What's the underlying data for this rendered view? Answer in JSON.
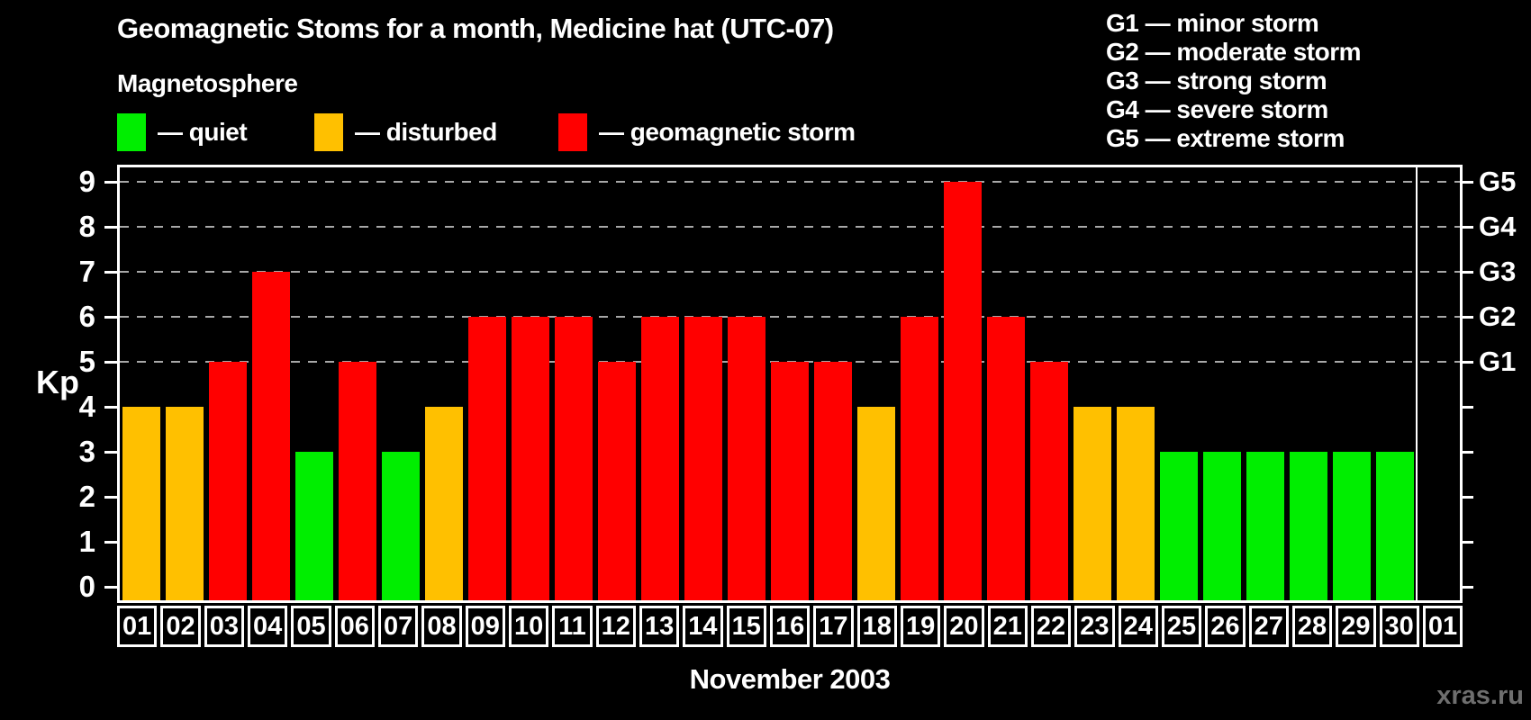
{
  "header": {
    "title": "Geomagnetic Stoms for a month, Medicine hat (UTC-07)",
    "subtitle": "Magnetosphere"
  },
  "legend": {
    "items": [
      {
        "key": "quiet",
        "label": "— quiet",
        "color": "#00ee00"
      },
      {
        "key": "disturbed",
        "label": "— disturbed",
        "color": "#ffc000"
      },
      {
        "key": "storm",
        "label": "— geomagnetic storm",
        "color": "#ff0000"
      }
    ]
  },
  "g_scale_legend": {
    "items": [
      "G1 — minor storm",
      "G2 — moderate storm",
      "G3 — strong storm",
      "G4 — severe storm",
      "G5 — extreme storm"
    ]
  },
  "chart_data": {
    "type": "bar",
    "title": "Geomagnetic Stoms for a month, Medicine hat (UTC-07)",
    "xlabel": "November 2003",
    "ylabel": "Kp",
    "ylim": [
      0,
      9
    ],
    "y_ticks": [
      0,
      1,
      2,
      3,
      4,
      5,
      6,
      7,
      8,
      9
    ],
    "grid_levels": [
      5,
      6,
      7,
      8,
      9
    ],
    "grid": "dashed, levels 5-9 only",
    "legend_position": "top",
    "right_axis": [
      {
        "level": 5,
        "label": "G1"
      },
      {
        "level": 6,
        "label": "G2"
      },
      {
        "level": 7,
        "label": "G3"
      },
      {
        "level": 8,
        "label": "G4"
      },
      {
        "level": 9,
        "label": "G5"
      }
    ],
    "categories": [
      "01",
      "02",
      "03",
      "04",
      "05",
      "06",
      "07",
      "08",
      "09",
      "10",
      "11",
      "12",
      "13",
      "14",
      "15",
      "16",
      "17",
      "18",
      "19",
      "20",
      "21",
      "22",
      "23",
      "24",
      "25",
      "26",
      "27",
      "28",
      "29",
      "30",
      "01"
    ],
    "values": [
      4,
      4,
      5,
      7,
      3,
      5,
      3,
      4,
      6,
      6,
      6,
      5,
      6,
      6,
      6,
      5,
      5,
      4,
      6,
      9,
      6,
      5,
      4,
      4,
      3,
      3,
      3,
      3,
      3,
      3,
      null
    ],
    "states": [
      "disturbed",
      "disturbed",
      "storm",
      "storm",
      "quiet",
      "storm",
      "quiet",
      "disturbed",
      "storm",
      "storm",
      "storm",
      "storm",
      "storm",
      "storm",
      "storm",
      "storm",
      "storm",
      "disturbed",
      "storm",
      "storm",
      "storm",
      "storm",
      "disturbed",
      "disturbed",
      "quiet",
      "quiet",
      "quiet",
      "quiet",
      "quiet",
      "quiet",
      null
    ],
    "colors": {
      "quiet": "#00ee00",
      "disturbed": "#ffc000",
      "storm": "#ff0000"
    },
    "month_boundary_index": 30
  },
  "footer": {
    "month_label": "November 2003",
    "watermark": "xras.ru"
  }
}
